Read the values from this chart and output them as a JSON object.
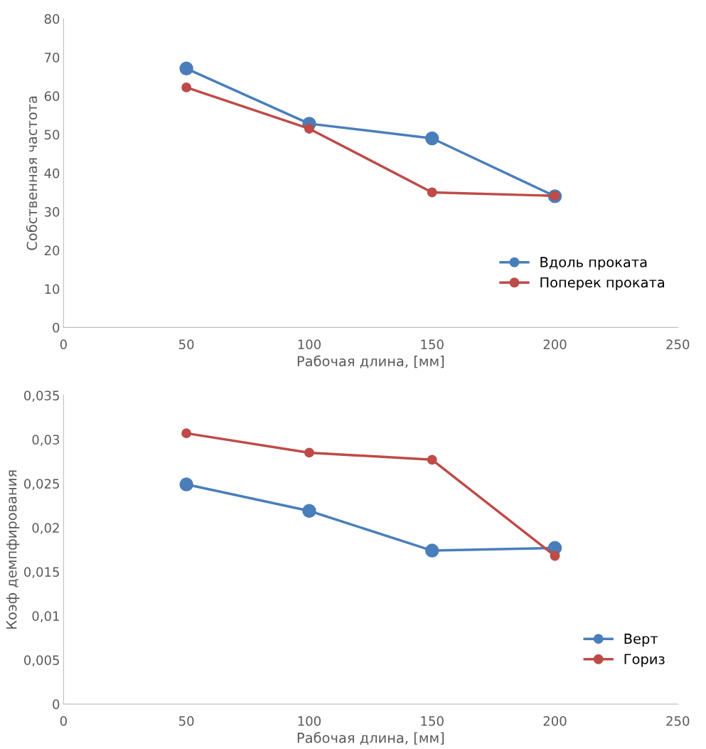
{
  "chart_data": [
    {
      "type": "line",
      "xlabel": "Рабочая длина, [мм]",
      "ylabel": "Собственная частота",
      "x": [
        50,
        100,
        150,
        200
      ],
      "xlim": [
        0,
        250
      ],
      "xticks": [
        0,
        50,
        100,
        150,
        200,
        250
      ],
      "ylim": [
        0,
        80
      ],
      "yticks": [
        0,
        10,
        20,
        30,
        40,
        50,
        60,
        70,
        80
      ],
      "grid": false,
      "legend": "bottom right",
      "marker": "circle",
      "line_style": "solid",
      "series": [
        {
          "name": "Вдоль проката",
          "color": "#4a7ebb",
          "values": [
            67.1,
            52.8,
            49,
            34
          ]
        },
        {
          "name": "Поперек проката",
          "color": "#be4b48",
          "values": [
            62.2,
            51.5,
            35,
            34.1
          ]
        }
      ]
    },
    {
      "type": "line",
      "xlabel": "Рабочая длина, [мм]",
      "ylabel": "Коэф демпфирования",
      "x": [
        50,
        100,
        150,
        200
      ],
      "xlim": [
        0,
        250
      ],
      "xticks": [
        0,
        50,
        100,
        150,
        200,
        250
      ],
      "ylim": [
        0,
        0.035
      ],
      "yticks": [
        {
          "value": 0,
          "label": "0"
        },
        {
          "value": 0.005,
          "label": "0,005"
        },
        {
          "value": 0.01,
          "label": "0,01"
        },
        {
          "value": 0.015,
          "label": "0,015"
        },
        {
          "value": 0.02,
          "label": "0,02"
        },
        {
          "value": 0.025,
          "label": "0,025"
        },
        {
          "value": 0.03,
          "label": "0,03"
        },
        {
          "value": 0.035,
          "label": "0,035"
        }
      ],
      "grid": false,
      "legend": "bottom right",
      "marker": "circle",
      "line_style": "solid",
      "series": [
        {
          "name": "Верт",
          "color": "#4a7ebb",
          "values": [
            0.0249,
            0.0219,
            0.0174,
            0.0177
          ]
        },
        {
          "name": "Гориз",
          "color": "#be4b48",
          "values": [
            0.0307,
            0.0285,
            0.0277,
            0.0168
          ]
        }
      ]
    }
  ]
}
